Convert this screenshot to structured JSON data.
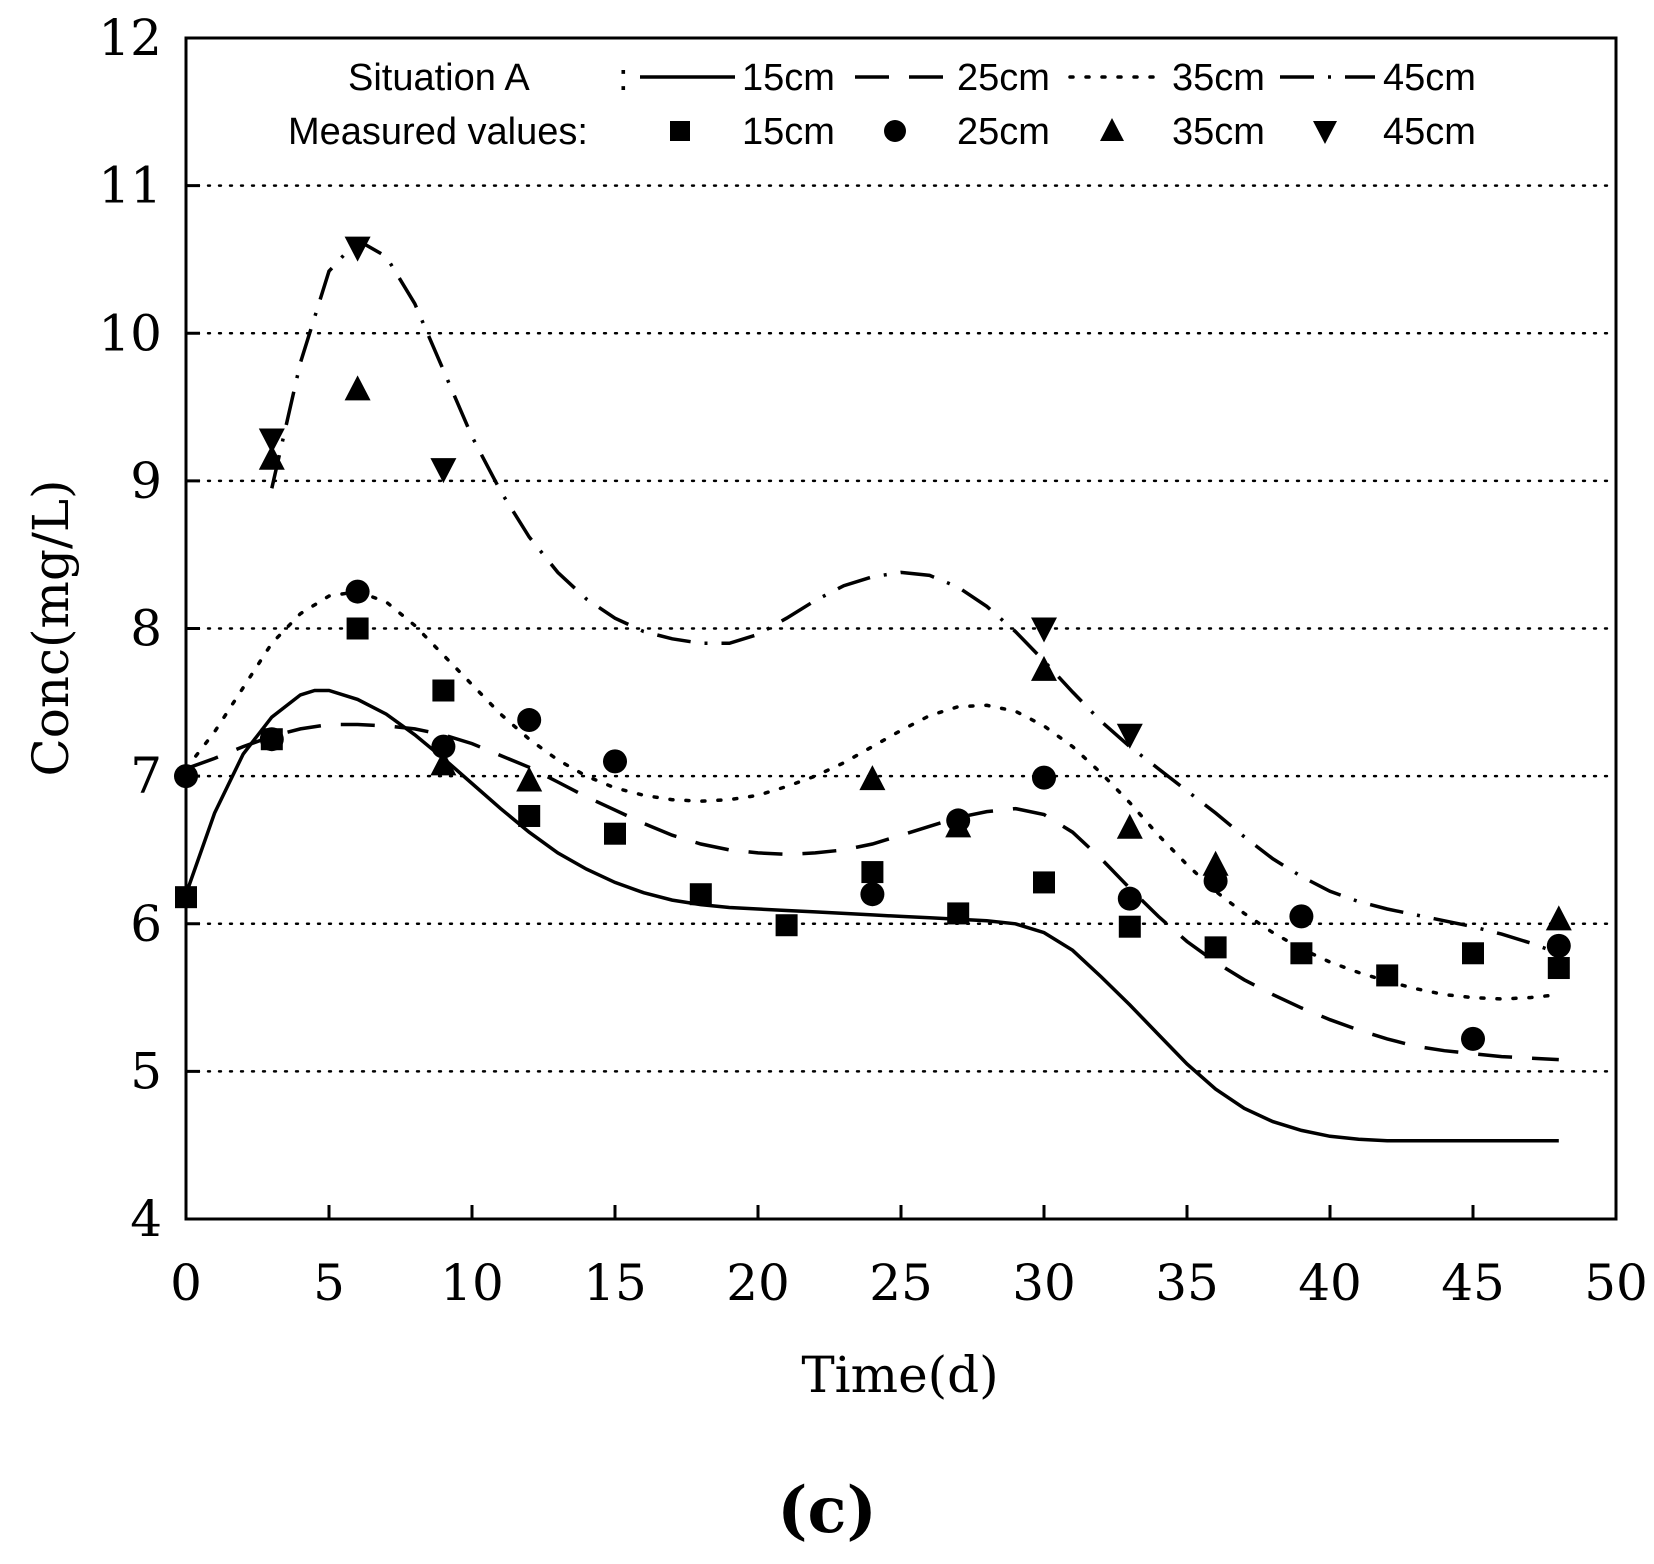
{
  "chart_data": {
    "type": "line",
    "caption": "(c)",
    "xlabel": "Time(d)",
    "ylabel": "Conc(mg/L)",
    "xlim": [
      0,
      50
    ],
    "ylim": [
      4,
      12
    ],
    "xticks": [
      0,
      5,
      10,
      15,
      20,
      25,
      30,
      35,
      40,
      45,
      50
    ],
    "yticks": [
      4,
      5,
      6,
      7,
      8,
      9,
      10,
      11,
      12
    ],
    "grid": "horizontal dotted",
    "legend": {
      "placement": "top",
      "model_label": "Situation A",
      "model_sep": ":",
      "measured_label": "Measured values:",
      "entries": [
        "15cm",
        "25cm",
        "35cm",
        "45cm"
      ]
    },
    "series": [
      {
        "name": "15cm",
        "line_style": "solid",
        "marker": "square",
        "model": {
          "x": [
            0,
            1,
            2,
            3,
            4,
            4.5,
            5,
            6,
            7,
            8,
            9,
            10,
            11,
            12,
            13,
            14,
            15,
            16,
            17,
            18,
            19,
            20,
            21,
            22,
            23,
            24,
            25,
            26,
            27,
            28,
            29,
            30,
            31,
            32,
            33,
            34,
            35,
            36,
            37,
            38,
            39,
            40,
            41,
            42,
            43,
            44,
            45,
            46,
            47,
            48
          ],
          "y": [
            6.2,
            6.75,
            7.15,
            7.4,
            7.55,
            7.58,
            7.58,
            7.52,
            7.42,
            7.28,
            7.12,
            6.95,
            6.78,
            6.62,
            6.48,
            6.37,
            6.28,
            6.21,
            6.16,
            6.13,
            6.11,
            6.1,
            6.09,
            6.08,
            6.07,
            6.06,
            6.05,
            6.04,
            6.03,
            6.02,
            6.0,
            5.94,
            5.82,
            5.64,
            5.45,
            5.25,
            5.05,
            4.88,
            4.75,
            4.66,
            4.6,
            4.56,
            4.54,
            4.53,
            4.53,
            4.53,
            4.53,
            4.53,
            4.53,
            4.53
          ]
        },
        "measured": {
          "x": [
            0,
            3,
            6,
            9,
            12,
            15,
            18,
            21,
            24,
            27,
            30,
            33,
            36,
            39,
            42,
            45,
            48
          ],
          "y": [
            6.18,
            7.25,
            8.0,
            7.58,
            6.73,
            6.61,
            6.2,
            5.99,
            6.35,
            6.07,
            6.28,
            5.98,
            5.84,
            5.8,
            5.65,
            5.8,
            5.7
          ]
        }
      },
      {
        "name": "25cm",
        "line_style": "dashed",
        "marker": "circle",
        "model": {
          "x": [
            0,
            1,
            2,
            3,
            4,
            5,
            6,
            7,
            8,
            9,
            10,
            11,
            12,
            13,
            14,
            15,
            16,
            17,
            18,
            19,
            20,
            21,
            22,
            23,
            24,
            25,
            26,
            27,
            28,
            29,
            30,
            31,
            32,
            33,
            34,
            35,
            36,
            37,
            38,
            39,
            40,
            41,
            42,
            43,
            44,
            45,
            46,
            47,
            48
          ],
          "y": [
            7.05,
            7.12,
            7.2,
            7.27,
            7.32,
            7.35,
            7.35,
            7.34,
            7.32,
            7.28,
            7.22,
            7.14,
            7.06,
            6.96,
            6.86,
            6.77,
            6.68,
            6.6,
            6.54,
            6.5,
            6.48,
            6.47,
            6.48,
            6.5,
            6.54,
            6.6,
            6.66,
            6.72,
            6.76,
            6.78,
            6.74,
            6.62,
            6.44,
            6.24,
            6.05,
            5.88,
            5.74,
            5.62,
            5.52,
            5.43,
            5.35,
            5.28,
            5.22,
            5.17,
            5.14,
            5.12,
            5.1,
            5.09,
            5.08
          ]
        },
        "measured": {
          "x": [
            0,
            3,
            6,
            9,
            12,
            15,
            24,
            27,
            30,
            33,
            36,
            39,
            45,
            48
          ],
          "y": [
            7.0,
            7.25,
            8.25,
            7.2,
            7.38,
            7.1,
            6.2,
            6.7,
            6.99,
            6.17,
            6.29,
            6.05,
            5.22,
            5.85
          ]
        }
      },
      {
        "name": "35cm",
        "line_style": "dotted",
        "marker": "triangle-up",
        "model": {
          "x": [
            0,
            1,
            2,
            3,
            4,
            5,
            6,
            7,
            8,
            9,
            10,
            11,
            12,
            13,
            14,
            15,
            16,
            17,
            18,
            19,
            20,
            21,
            22,
            23,
            24,
            25,
            26,
            27,
            28,
            29,
            30,
            31,
            32,
            33,
            34,
            35,
            36,
            37,
            38,
            39,
            40,
            41,
            42,
            43,
            44,
            45,
            46,
            47,
            48
          ],
          "y": [
            7.05,
            7.3,
            7.6,
            7.9,
            8.1,
            8.22,
            8.25,
            8.18,
            8.02,
            7.82,
            7.62,
            7.42,
            7.25,
            7.11,
            7.0,
            6.92,
            6.87,
            6.84,
            6.83,
            6.84,
            6.87,
            6.93,
            7.0,
            7.09,
            7.2,
            7.31,
            7.41,
            7.47,
            7.48,
            7.44,
            7.34,
            7.2,
            7.02,
            6.82,
            6.6,
            6.4,
            6.22,
            6.07,
            5.94,
            5.83,
            5.74,
            5.67,
            5.61,
            5.56,
            5.52,
            5.5,
            5.49,
            5.5,
            5.52
          ]
        },
        "measured": {
          "x": [
            3,
            6,
            9,
            12,
            24,
            27,
            30,
            33,
            36,
            48
          ],
          "y": [
            9.15,
            9.62,
            7.08,
            6.97,
            6.98,
            6.66,
            7.72,
            6.65,
            6.4,
            6.03
          ]
        }
      },
      {
        "name": "45cm",
        "line_style": "dashdot",
        "marker": "triangle-down",
        "model": {
          "x": [
            3,
            4,
            5,
            6,
            7,
            8,
            9,
            10,
            11,
            12,
            13,
            14,
            15,
            16,
            17,
            18,
            19,
            20,
            21,
            22,
            23,
            24,
            25,
            26,
            27,
            28,
            29,
            30,
            31,
            32,
            33,
            34,
            35,
            36,
            37,
            38,
            39,
            40,
            41,
            42,
            43,
            44,
            45,
            46,
            47,
            48
          ],
          "y": [
            8.95,
            9.8,
            10.42,
            10.63,
            10.52,
            10.2,
            9.75,
            9.3,
            8.93,
            8.62,
            8.38,
            8.2,
            8.07,
            7.98,
            7.93,
            7.9,
            7.9,
            7.96,
            8.07,
            8.19,
            8.29,
            8.35,
            8.38,
            8.36,
            8.28,
            8.15,
            7.98,
            7.78,
            7.57,
            7.37,
            7.2,
            7.05,
            6.9,
            6.75,
            6.59,
            6.44,
            6.32,
            6.22,
            6.15,
            6.1,
            6.06,
            6.02,
            5.98,
            5.93,
            5.87,
            5.8
          ]
        },
        "measured": {
          "x": [
            3,
            6,
            9,
            30,
            33
          ],
          "y": [
            9.28,
            10.58,
            9.08,
            8.0,
            7.28
          ]
        }
      }
    ]
  }
}
